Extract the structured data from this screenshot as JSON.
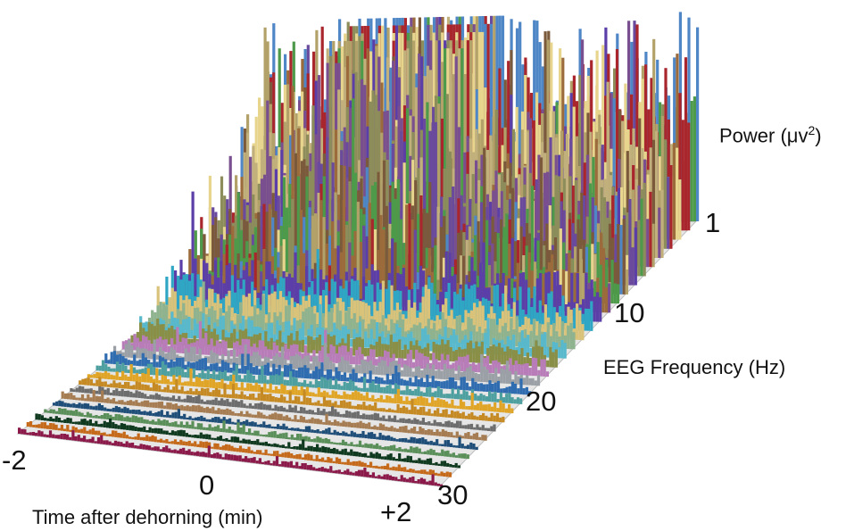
{
  "chart_data": {
    "type": "3d-waterfall",
    "x_axis": {
      "label": "Time after dehorning (min)",
      "ticks": [
        "-2",
        "0",
        "+2"
      ],
      "range": [
        -2,
        2
      ]
    },
    "depth_axis": {
      "label": "EEG Frequency (Hz)",
      "ticks": [
        "1",
        "10",
        "20",
        "30"
      ],
      "range": [
        1,
        30
      ]
    },
    "z_axis": {
      "label_prefix": "Power (μv",
      "label_exp": "2",
      "label_suffix": ")"
    },
    "series_colors": [
      "#4f86c6",
      "#a8262c",
      "#e7d48d",
      "#b2a26a",
      "#c1b07c",
      "#7a4f8f",
      "#8d8d5c",
      "#6a4a9c",
      "#7b5a3c",
      "#4c9a4a",
      "#9c6b3c",
      "#5b3ea8",
      "#2fa6c4",
      "#d9c27a",
      "#8fb38f",
      "#58b8cc",
      "#8a8f48",
      "#b87cb8",
      "#9aa0a6",
      "#2f6cb0",
      "#4ea0a0",
      "#e0a526",
      "#c58a24",
      "#6d6d6d",
      "#a67c52",
      "#1f4e79",
      "#5a8f5a",
      "#0f3a1f",
      "#c56a1a",
      "#8b1a4a"
    ],
    "grid": false,
    "legend": "none"
  }
}
